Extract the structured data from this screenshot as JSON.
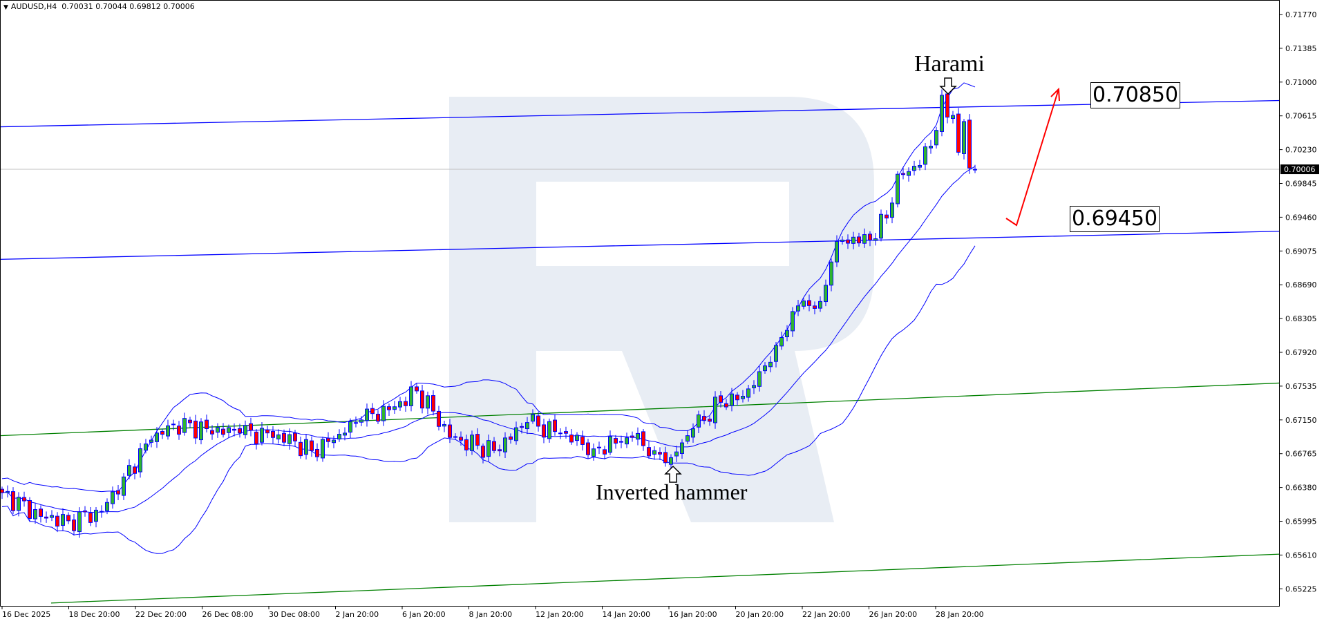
{
  "header": {
    "symbol": "AUDUSD,H4",
    "open": "0.70031",
    "high": "0.70044",
    "low": "0.69812",
    "close": "0.70006",
    "menu_icon": "triangle-down-icon"
  },
  "price_axis": {
    "labels": [
      "0.71770",
      "0.71385",
      "0.71000",
      "0.70615",
      "0.70230",
      "0.69845",
      "0.69460",
      "0.69075",
      "0.68690",
      "0.68305",
      "0.67920",
      "0.67535",
      "0.67150",
      "0.66765",
      "0.66380",
      "0.65995",
      "0.65610",
      "0.65225"
    ],
    "current_price": "0.70006"
  },
  "time_axis": {
    "labels": [
      "16 Dec 2025",
      "18 Dec 20:00",
      "22 Dec 20:00",
      "26 Dec 08:00",
      "30 Dec 08:00",
      "2 Jan 20:00",
      "6 Jan 20:00",
      "8 Jan 20:00",
      "12 Jan 20:00",
      "14 Jan 20:00",
      "16 Jan 20:00",
      "20 Jan 20:00",
      "22 Jan 20:00",
      "26 Jan 20:00",
      "28 Jan 20:00"
    ]
  },
  "annotations": {
    "harami": "Harami",
    "inverted_hammer": "Inverted hammer",
    "resistance_label": "0.70850",
    "support_label": "0.69450"
  },
  "colors": {
    "bull": "#2fb52f",
    "bear": "#ff0000",
    "candle_outline": "#0000ff",
    "bollinger": "#0000ff",
    "channel_blue": "#0000ff",
    "channel_green": "#008000",
    "forecast_arrow": "#ff0000",
    "watermark": "#e8edf4",
    "current_price_line": "#c0c0c0"
  },
  "chart_data": {
    "type": "candlestick",
    "timeframe": "H4",
    "ylim": [
      0.65225,
      0.7177
    ],
    "bollinger": {
      "period": 20,
      "deviation": 2
    },
    "close_path": [
      [
        0,
        0.6632
      ],
      [
        7,
        0.6605
      ],
      [
        12,
        0.66
      ],
      [
        18,
        0.661
      ],
      [
        22,
        0.665
      ],
      [
        27,
        0.6692
      ],
      [
        31,
        0.671
      ],
      [
        37,
        0.6705
      ],
      [
        43,
        0.67
      ],
      [
        50,
        0.6698
      ],
      [
        56,
        0.668
      ],
      [
        62,
        0.67
      ],
      [
        65,
        0.6715
      ],
      [
        71,
        0.673
      ],
      [
        75,
        0.6748
      ],
      [
        78,
        0.6725
      ],
      [
        81,
        0.6695
      ],
      [
        89,
        0.668
      ],
      [
        95,
        0.6712
      ],
      [
        101,
        0.67
      ],
      [
        107,
        0.6682
      ],
      [
        114,
        0.6695
      ],
      [
        118,
        0.668
      ],
      [
        121,
        0.6672
      ],
      [
        125,
        0.6705
      ],
      [
        130,
        0.6735
      ],
      [
        134,
        0.6742
      ],
      [
        137,
        0.677
      ],
      [
        140,
        0.68
      ],
      [
        144,
        0.6845
      ],
      [
        148,
        0.685
      ],
      [
        150,
        0.6895
      ],
      [
        152,
        0.692
      ],
      [
        157,
        0.692
      ],
      [
        160,
        0.6945
      ],
      [
        162,
        0.6995
      ],
      [
        166,
        0.7005
      ],
      [
        169,
        0.7045
      ],
      [
        170,
        0.7085
      ],
      [
        171,
        0.706
      ],
      [
        172,
        0.7062
      ],
      [
        173,
        0.702
      ],
      [
        174,
        0.7055
      ],
      [
        175,
        0.7002
      ],
      [
        176,
        0.70006
      ]
    ],
    "channel_lines": [
      {
        "color": "blue",
        "start": 0.7049,
        "end": 0.7079
      },
      {
        "color": "blue",
        "start": 0.6898,
        "end": 0.693
      },
      {
        "color": "green",
        "start": 0.6697,
        "end": 0.6757
      },
      {
        "color": "green",
        "start": 0.6504,
        "end": 0.6562
      }
    ]
  }
}
